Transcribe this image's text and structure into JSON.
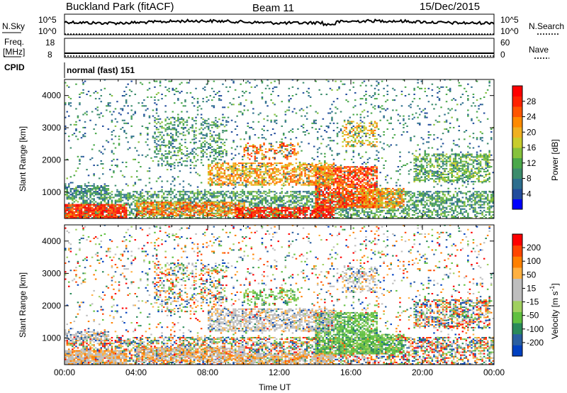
{
  "header": {
    "radar_title": "Buckland Park (fitACF)",
    "beam": "Beam 11",
    "date": "15/Dec/2015"
  },
  "top_panels": {
    "nsky_label": "N.Sky",
    "nsky_ticks": [
      "10^5",
      "10^0"
    ],
    "nsearch_label": "N.Search",
    "nsearch_ticks": [
      "10^5",
      "10^0"
    ],
    "freq_label_1": "Freq.",
    "freq_label_2": "[MHz]",
    "freq_ticks": [
      "18",
      "8"
    ],
    "nave_label": "Nave",
    "nave_ticks": [
      "60",
      "0"
    ],
    "cpid_label": "CPID",
    "cpid_text": "normal (fast) 151"
  },
  "colors": {
    "power_scale": [
      "#0000ff",
      "#224c9c",
      "#2d6e8e",
      "#3c8c6c",
      "#4aa84a",
      "#86c23c",
      "#c8cc2c",
      "#f0b020",
      "#ff8a00",
      "#ff5500",
      "#ff2200",
      "#ff0000"
    ],
    "velocity_scale": [
      "#ff0000",
      "#ff4500",
      "#ff8000",
      "#ffb040",
      "#bebebe",
      "#bebebe",
      "#a0d060",
      "#60c040",
      "#2a8a5a",
      "#2a5fa0",
      "#0040c0"
    ]
  },
  "chart_data": [
    {
      "type": "heatmap",
      "title": "Power",
      "ylabel": "Slant Range [km]",
      "xlabel": "",
      "ylim": [
        180,
        4500
      ],
      "xlim": [
        0,
        24
      ],
      "y_ticks": [
        "1000",
        "2000",
        "3000",
        "4000"
      ],
      "x_ticks": [
        "00:00",
        "04:00",
        "08:00",
        "12:00",
        "16:00",
        "20:00",
        "00:00"
      ],
      "colorbar": {
        "label": "Power [dB]",
        "range": [
          0,
          30
        ],
        "ticks": [
          "4",
          "8",
          "12",
          "16",
          "20",
          "24",
          "28"
        ]
      }
    },
    {
      "type": "heatmap",
      "title": "Velocity",
      "ylabel": "Slant Range [km]",
      "xlabel": "Time UT",
      "ylim": [
        180,
        4500
      ],
      "xlim": [
        0,
        24
      ],
      "y_ticks": [
        "1000",
        "2000",
        "3000",
        "4000"
      ],
      "x_ticks": [
        "00:00",
        "04:00",
        "08:00",
        "12:00",
        "16:00",
        "20:00",
        "00:00"
      ],
      "colorbar": {
        "label": "Velocity [m s-1]",
        "unit_superscript": "-1",
        "range": [
          -250,
          250
        ],
        "ticks": [
          "200",
          "100",
          "50",
          "15",
          "-15",
          "-50",
          "-100",
          "-200"
        ]
      }
    }
  ]
}
